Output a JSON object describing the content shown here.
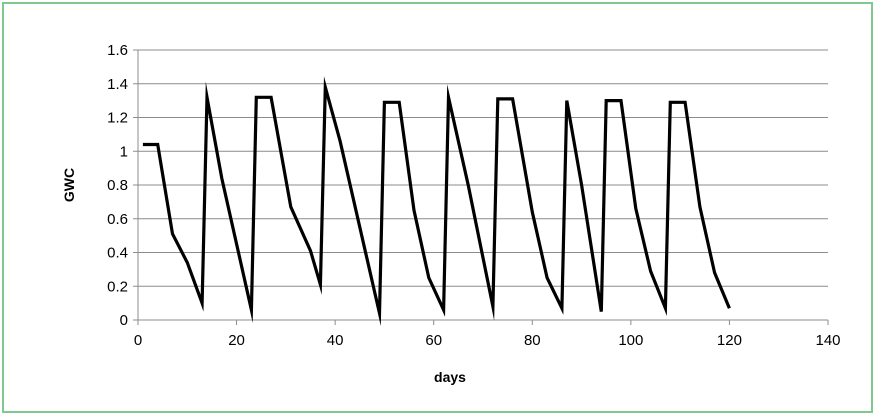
{
  "chart_data": {
    "type": "line",
    "title": "",
    "xlabel": "days",
    "ylabel": "GWC",
    "xlim": [
      0,
      140
    ],
    "ylim": [
      0,
      1.6
    ],
    "x_ticks": [
      "0",
      "20",
      "40",
      "60",
      "80",
      "100",
      "120",
      "140"
    ],
    "y_ticks": [
      "0",
      "0.2",
      "0.4",
      "0.6",
      "0.8",
      "1",
      "1.2",
      "1.4",
      "1.6"
    ],
    "grid": "horizontal",
    "legend": "none",
    "series": [
      {
        "color": "#000000",
        "points": [
          [
            1,
            1.04
          ],
          [
            4,
            1.04
          ],
          [
            7,
            0.51
          ],
          [
            10,
            0.34
          ],
          [
            13,
            0.1
          ],
          [
            14,
            1.32
          ],
          [
            17,
            0.84
          ],
          [
            23,
            0.06
          ],
          [
            24,
            1.32
          ],
          [
            27,
            1.32
          ],
          [
            31,
            0.67
          ],
          [
            35,
            0.41
          ],
          [
            37,
            0.21
          ],
          [
            38,
            1.38
          ],
          [
            41,
            1.06
          ],
          [
            49,
            0.04
          ],
          [
            50,
            1.29
          ],
          [
            53,
            1.29
          ],
          [
            56,
            0.65
          ],
          [
            59,
            0.25
          ],
          [
            62,
            0.06
          ],
          [
            63,
            1.32
          ],
          [
            67,
            0.8
          ],
          [
            72,
            0.08
          ],
          [
            73,
            1.31
          ],
          [
            76,
            1.31
          ],
          [
            80,
            0.64
          ],
          [
            83,
            0.25
          ],
          [
            86,
            0.07
          ],
          [
            87,
            1.3
          ],
          [
            90,
            0.8
          ],
          [
            94,
            0.05
          ],
          [
            95,
            1.3
          ],
          [
            98,
            1.3
          ],
          [
            101,
            0.66
          ],
          [
            104,
            0.29
          ],
          [
            107,
            0.07
          ],
          [
            108,
            1.29
          ],
          [
            111,
            1.29
          ],
          [
            114,
            0.67
          ],
          [
            117,
            0.28
          ],
          [
            120,
            0.07
          ]
        ]
      }
    ]
  }
}
